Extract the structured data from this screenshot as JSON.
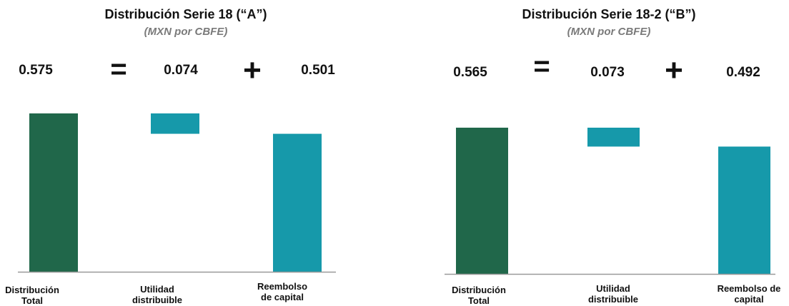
{
  "colors": {
    "total": "#20674a",
    "teal": "#1699aa",
    "axis": "#999999",
    "text": "#111111",
    "subtitle": "#7a7a7a"
  },
  "chart_data": [
    {
      "type": "bar",
      "title": "Distribución Serie 18 (“A”)",
      "subtitle": "(MXN por CBFE)",
      "equation": {
        "total": "0.575",
        "equals": "=",
        "part1": "0.074",
        "plus": "+",
        "part2": "0.501"
      },
      "categories": [
        [
          "Distribución",
          "Total"
        ],
        [
          "Utilidad",
          "distribuible"
        ],
        [
          "Reembolso",
          "de capital"
        ]
      ],
      "bars": [
        {
          "name": "Distribución Total",
          "start": 0,
          "end": 0.575,
          "color": "#20674a"
        },
        {
          "name": "Utilidad distribuible",
          "start": 0.501,
          "end": 0.575,
          "color": "#1699aa"
        },
        {
          "name": "Reembolso de capital",
          "start": 0,
          "end": 0.501,
          "color": "#1699aa"
        }
      ],
      "ylim": [
        0,
        0.575
      ],
      "grid": false,
      "legend": false
    },
    {
      "type": "bar",
      "title": "Distribución Serie 18-2 (“B”)",
      "subtitle": "(MXN por CBFE)",
      "equation": {
        "total": "0.565",
        "equals": "=",
        "part1": "0.073",
        "plus": "+",
        "part2": "0.492"
      },
      "categories": [
        [
          "Distribución",
          "Total"
        ],
        [
          "Utilidad",
          "distribuible"
        ],
        [
          "Reembolso de",
          "capital"
        ]
      ],
      "bars": [
        {
          "name": "Distribución Total",
          "start": 0,
          "end": 0.565,
          "color": "#20674a"
        },
        {
          "name": "Utilidad distribuible",
          "start": 0.492,
          "end": 0.565,
          "color": "#1699aa"
        },
        {
          "name": "Reembolso de capital",
          "start": 0,
          "end": 0.492,
          "color": "#1699aa"
        }
      ],
      "ylim": [
        0,
        0.62
      ],
      "grid": false,
      "legend": false
    }
  ]
}
